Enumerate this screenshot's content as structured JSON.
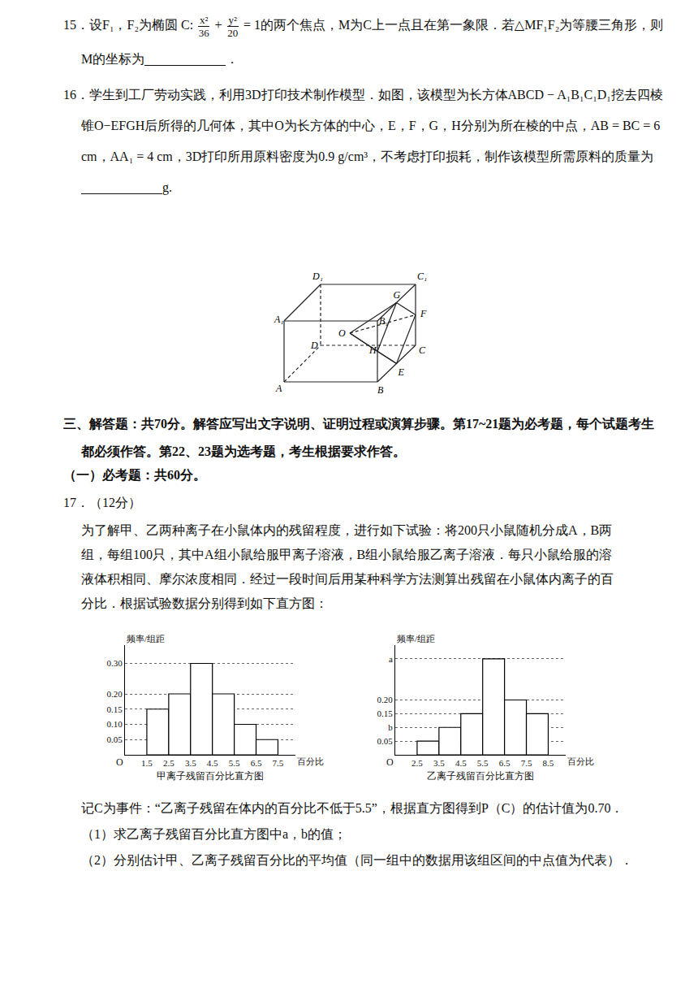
{
  "document": {
    "q15": {
      "number": "15．",
      "text": [
        "设F₁，F₂为椭圆 C: ",
        {
          "frac": [
            "x²",
            "36"
          ]
        },
        " + ",
        {
          "frac": [
            "y²",
            "20"
          ]
        },
        " = 1的两个焦点，M为C上一点且在第一象限．若△MF₁F₂为等腰三角形，则M的坐标为",
        {
          "blank": true
        },
        "．"
      ]
    },
    "q16": {
      "number": "16．",
      "text": [
        "学生到工厂劳动实践，利用3D打印技术制作模型．如图，该模型为长方体ABCD − A₁B₁C₁D₁挖去四棱锥O−EFGH后所得的几何体，其中O为长方体的中心，E，F，G，H分别为所在棱的中点，AB = BC = 6 cm，AA₁ = 4 cm，3D打印所用原料密度为0.9 g/cm³，不考虑打印损耗，制作该模型所需原料的质量为",
        {
          "blank": true
        },
        "g."
      ]
    },
    "figure_labels": {
      "A1": "A₁",
      "B1": "B₁",
      "C1": "C₁",
      "D1": "D₁",
      "A": "A",
      "B": "B",
      "C": "C",
      "D": "D",
      "E": "E",
      "F": "F",
      "G": "G",
      "H": "H",
      "O": "O"
    },
    "section": "三、解答题：共70分。解答应写出文字说明、证明过程或演算步骤。第17~21题为必考题，每个试题考生都必须作答。第22、23题为选考题，考生根据要求作答。",
    "subsection": "（一）必考题：共60分。",
    "q17": {
      "number": "17．",
      "points": "（12分）",
      "intro": "为了解甲、乙两种离子在小鼠体内的残留程度，进行如下试验：将200只小鼠随机分成A，B两组，每组100只，其中A组小鼠给服甲离子溶液，B组小鼠给服乙离子溶液．每只小鼠给服的溶液体积相同、摩尔浓度相同．经过一段时间后用某种科学方法测算出残留在小鼠体内离子的百分比．根据试验数据分别得到如下直方图：",
      "condition": "记C为事件：“乙离子残留在体内的百分比不低于5.5”，根据直方图得到P（C）的估计值为0.70．",
      "parts": [
        "（1）求乙离子残留百分比直方图中a，b的值；",
        "（2）分别估计甲、乙离子残留百分比的平均值（同一组中的数据用该组区间的中点值为代表）．"
      ]
    }
  },
  "chart_data": [
    {
      "type": "histogram",
      "title": "甲离子残留百分比直方图",
      "x_label": "百分比",
      "y_label": "频率/组距",
      "origin_label": "O",
      "bins": [
        1.5,
        2.5,
        3.5,
        4.5,
        5.5,
        6.5,
        7.5
      ],
      "values": [
        0.15,
        0.2,
        0.3,
        0.2,
        0.1,
        0.05
      ],
      "xlim": [
        0.5,
        8.3
      ],
      "ylim": [
        0,
        0.36
      ],
      "xticks": [
        1.5,
        2.5,
        3.5,
        4.5,
        5.5,
        6.5,
        7.5
      ],
      "yticks": [
        0.05,
        {
          "value": 0.1,
          "label": "0.10"
        },
        0.15,
        {
          "value": 0.2,
          "label": "0.20"
        },
        {
          "value": 0.3,
          "label": "0.30"
        }
      ],
      "grid": true,
      "color": "#ffffff"
    },
    {
      "type": "histogram",
      "title": "乙离子残留百分比直方图",
      "x_label": "百分比",
      "y_label": "频率/组距",
      "origin_label": "O",
      "bins": [
        2.5,
        3.5,
        4.5,
        5.5,
        6.5,
        7.5,
        8.5
      ],
      "values": [
        0.05,
        0.1,
        0.15,
        0.35,
        0.2,
        0.15
      ],
      "xlim": [
        1.5,
        9.3
      ],
      "ylim": [
        0,
        0.4
      ],
      "xticks": [
        2.5,
        3.5,
        4.5,
        5.5,
        6.5,
        7.5,
        8.5
      ],
      "yticks": [
        0.05,
        {
          "value": 0.1,
          "label": "b"
        },
        0.15,
        {
          "value": 0.2,
          "label": "0.20"
        },
        {
          "value": 0.35,
          "label": "a"
        }
      ],
      "grid": true,
      "color": "#ffffff"
    }
  ]
}
